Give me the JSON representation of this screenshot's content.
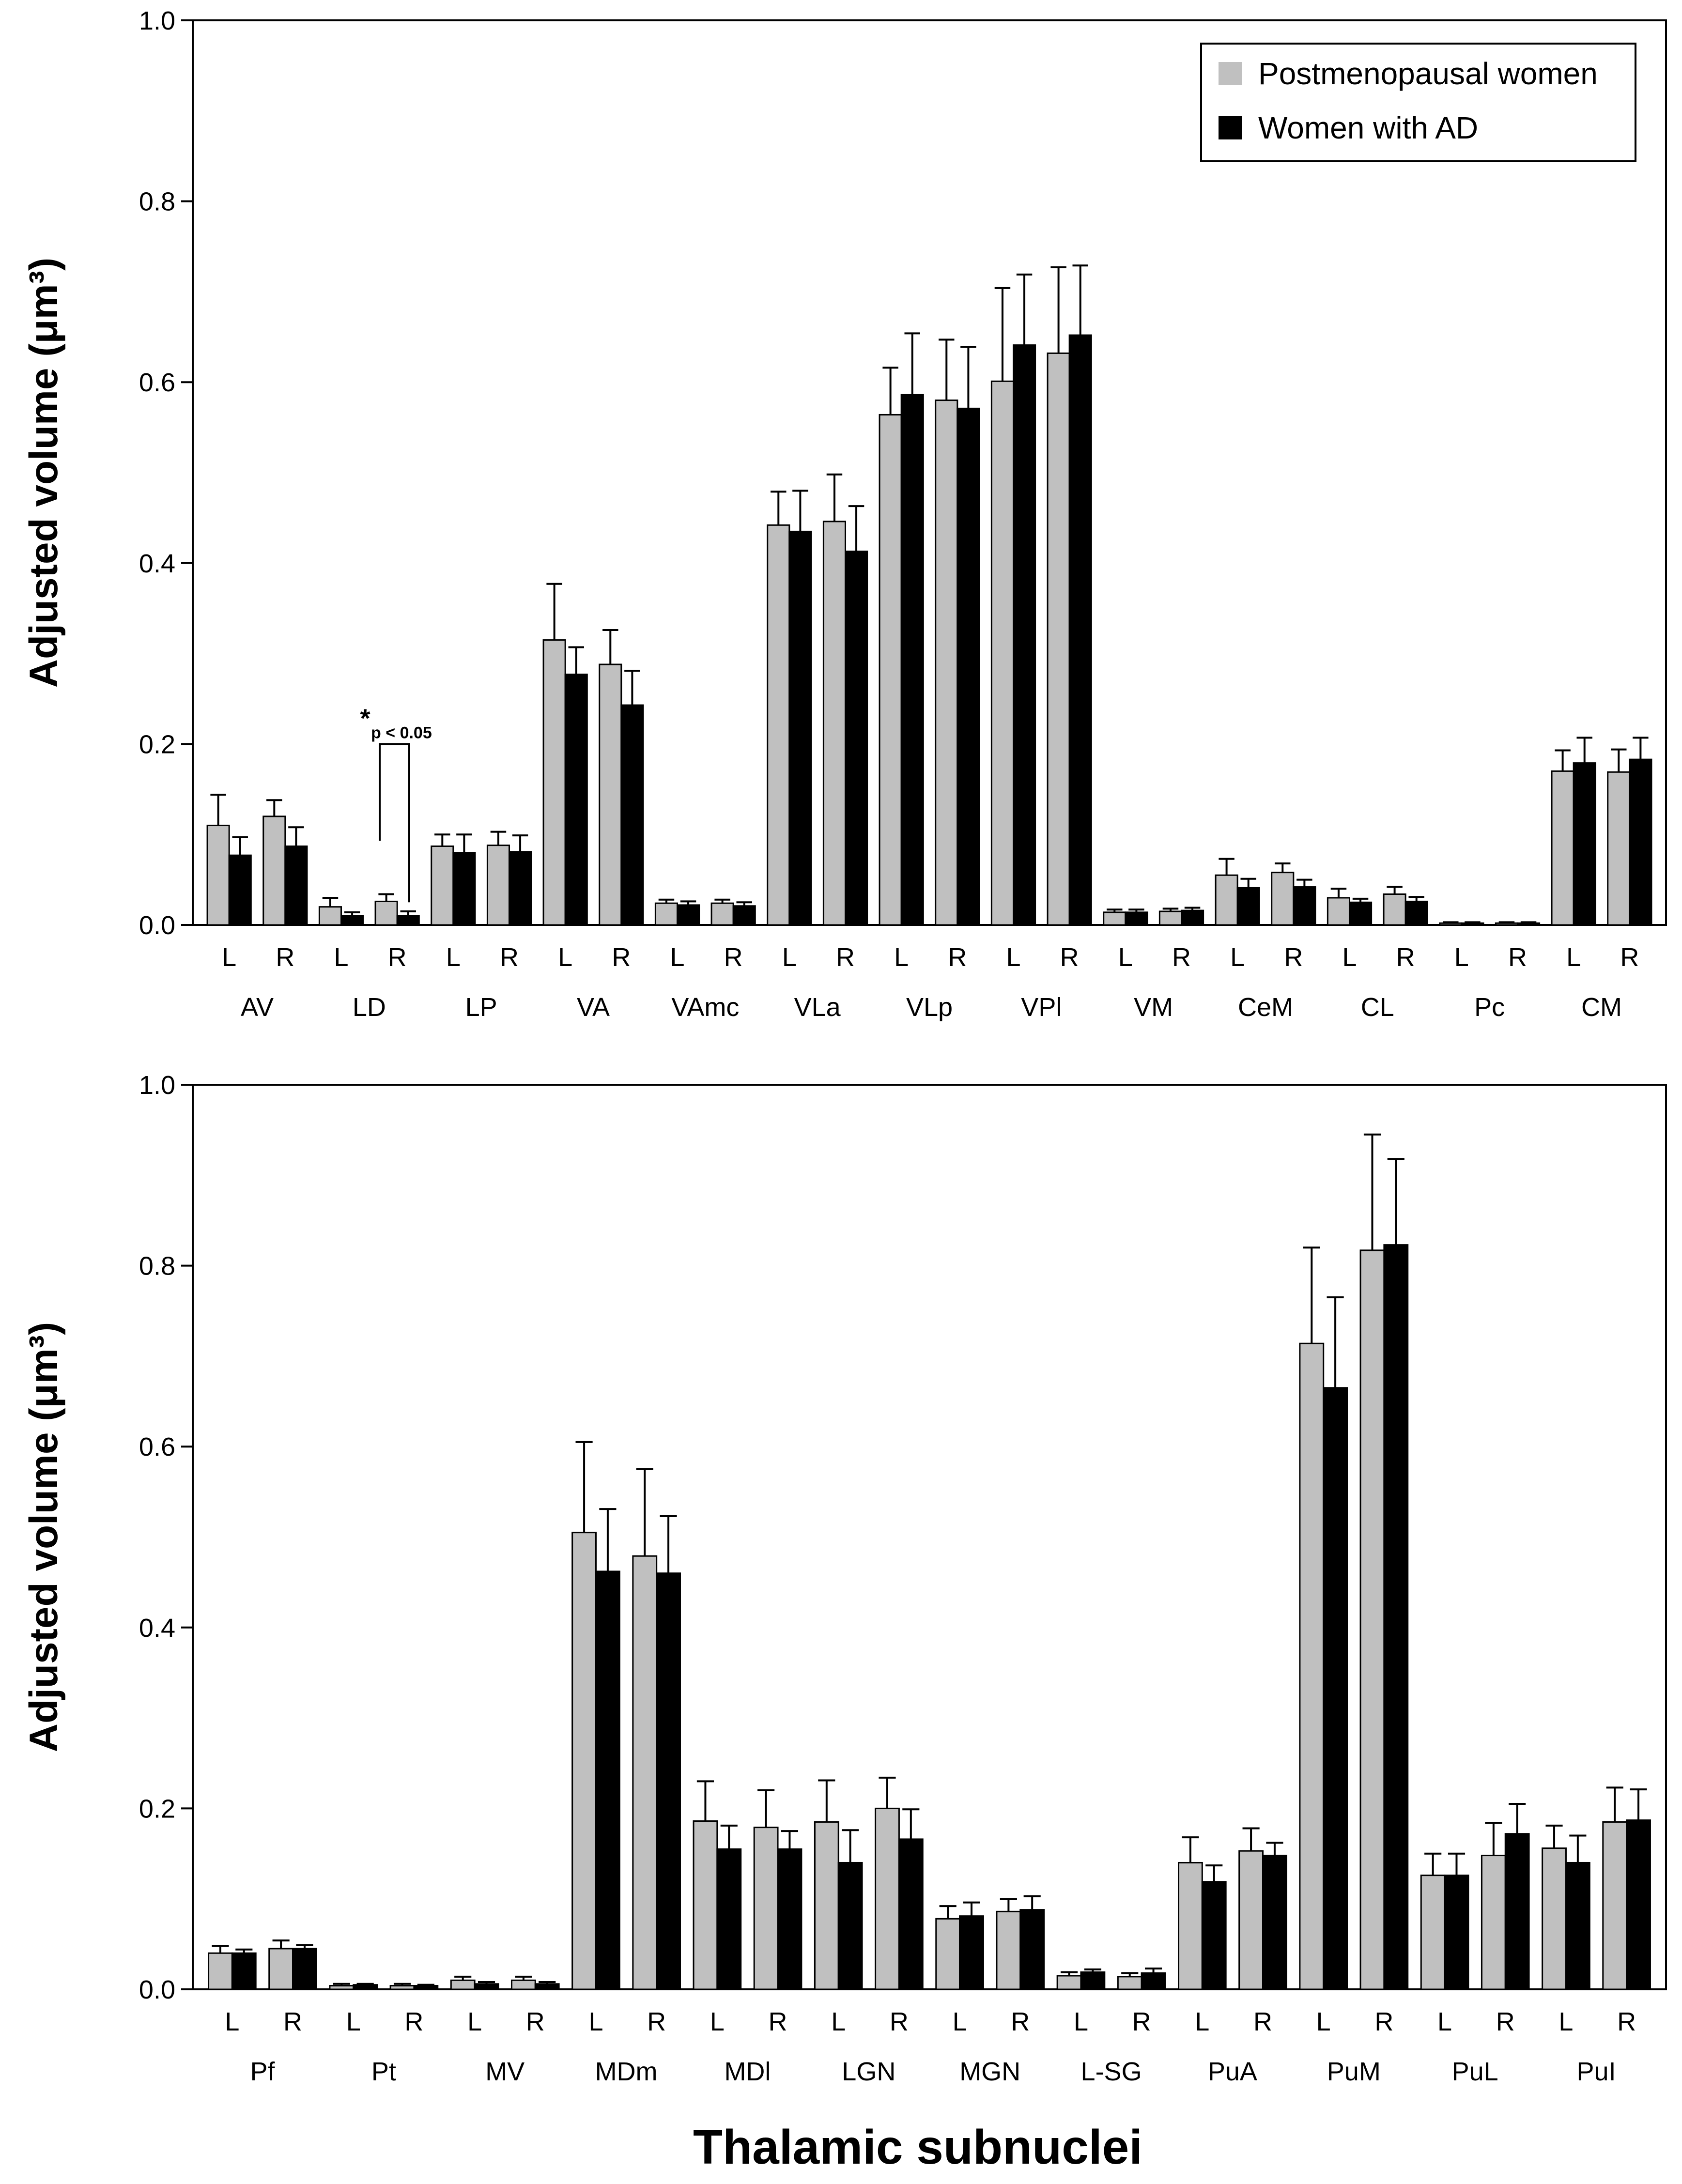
{
  "colors": {
    "series1": "#c0c0c0",
    "series2": "#000000",
    "axis": "#000000",
    "background": "#ffffff"
  },
  "legend": {
    "entries": [
      "Postmenopausal women",
      "Women with AD"
    ],
    "placement": "top-right"
  },
  "xlabel": "Thalamic subnuclei",
  "sides": [
    "L",
    "R"
  ],
  "chart_data": [
    {
      "type": "bar",
      "title": "",
      "ylabel": "Adjusted volume (μm³)",
      "ylim": [
        0,
        1.0
      ],
      "yticks": [
        "0.0",
        "0.2",
        "0.4",
        "0.6",
        "0.8",
        "1.0"
      ],
      "groups": [
        "AV",
        "LD",
        "LP",
        "VA",
        "VAmc",
        "VLa",
        "VLp",
        "VPl",
        "VM",
        "CeM",
        "CL",
        "Pc",
        "CM"
      ],
      "series": [
        {
          "name": "Postmenopausal women",
          "values": [
            0.11,
            0.12,
            0.02,
            0.026,
            0.087,
            0.088,
            0.315,
            0.288,
            0.024,
            0.024,
            0.442,
            0.446,
            0.564,
            0.58,
            0.601,
            0.632,
            0.014,
            0.015,
            0.055,
            0.058,
            0.03,
            0.034,
            0.002,
            0.002,
            0.17,
            0.169
          ],
          "errors": [
            0.034,
            0.018,
            0.01,
            0.008,
            0.013,
            0.015,
            0.062,
            0.038,
            0.004,
            0.004,
            0.037,
            0.052,
            0.052,
            0.067,
            0.103,
            0.095,
            0.003,
            0.003,
            0.018,
            0.01,
            0.01,
            0.008,
            0.001,
            0.001,
            0.023,
            0.025
          ]
        },
        {
          "name": "Women with AD",
          "values": [
            0.077,
            0.087,
            0.01,
            0.01,
            0.08,
            0.081,
            0.277,
            0.243,
            0.022,
            0.021,
            0.435,
            0.413,
            0.586,
            0.571,
            0.641,
            0.652,
            0.014,
            0.016,
            0.041,
            0.042,
            0.025,
            0.026,
            0.002,
            0.002,
            0.179,
            0.183
          ],
          "errors": [
            0.02,
            0.021,
            0.004,
            0.005,
            0.02,
            0.018,
            0.03,
            0.038,
            0.004,
            0.004,
            0.045,
            0.05,
            0.068,
            0.068,
            0.078,
            0.077,
            0.003,
            0.003,
            0.01,
            0.008,
            0.004,
            0.005,
            0.001,
            0.001,
            0.028,
            0.024
          ]
        }
      ],
      "annotation": {
        "star": "*",
        "text": "p < 0.05",
        "group": "LD"
      }
    },
    {
      "type": "bar",
      "title": "",
      "ylabel": "Adjusted volume (μm³)",
      "ylim": [
        0,
        1.0
      ],
      "yticks": [
        "0.0",
        "0.2",
        "0.4",
        "0.6",
        "0.8",
        "1.0"
      ],
      "groups": [
        "Pf",
        "Pt",
        "MV",
        "MDm",
        "MDl",
        "LGN",
        "MGN",
        "L-SG",
        "PuA",
        "PuM",
        "PuL",
        "PuI"
      ],
      "series": [
        {
          "name": "Postmenopausal women",
          "values": [
            0.04,
            0.045,
            0.004,
            0.004,
            0.01,
            0.01,
            0.505,
            0.479,
            0.186,
            0.179,
            0.185,
            0.2,
            0.078,
            0.086,
            0.015,
            0.014,
            0.14,
            0.153,
            0.714,
            0.817,
            0.126,
            0.148,
            0.156,
            0.185
          ],
          "errors": [
            0.008,
            0.009,
            0.002,
            0.002,
            0.004,
            0.004,
            0.1,
            0.096,
            0.044,
            0.041,
            0.046,
            0.034,
            0.014,
            0.014,
            0.004,
            0.004,
            0.028,
            0.025,
            0.106,
            0.128,
            0.024,
            0.036,
            0.025,
            0.038
          ]
        },
        {
          "name": "Women with AD",
          "values": [
            0.04,
            0.045,
            0.005,
            0.004,
            0.006,
            0.006,
            0.462,
            0.46,
            0.155,
            0.155,
            0.14,
            0.166,
            0.081,
            0.088,
            0.019,
            0.018,
            0.119,
            0.148,
            0.665,
            0.823,
            0.126,
            0.172,
            0.14,
            0.187
          ],
          "errors": [
            0.004,
            0.004,
            0.001,
            0.001,
            0.002,
            0.002,
            0.069,
            0.063,
            0.026,
            0.02,
            0.036,
            0.033,
            0.015,
            0.015,
            0.003,
            0.005,
            0.018,
            0.014,
            0.1,
            0.095,
            0.024,
            0.033,
            0.03,
            0.034
          ]
        }
      ]
    }
  ]
}
